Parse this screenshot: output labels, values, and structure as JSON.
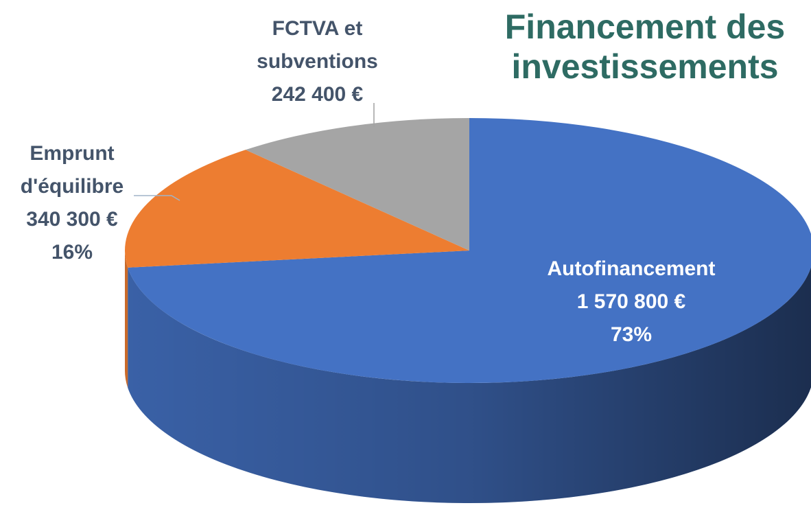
{
  "chart_data": {
    "type": "pie",
    "title": "Financement des investissements",
    "categories": [
      "Autofinancement",
      "Emprunt d'équilibre",
      "FCTVA et subventions"
    ],
    "values": [
      1570800,
      340300,
      242400
    ],
    "value_labels": [
      "1 570 800 €",
      "340 300 €",
      "242 400 €"
    ],
    "percent_labels": [
      "73%",
      "16%",
      null
    ],
    "colors": [
      "#4472c4",
      "#ed7d31",
      "#a5a5a5"
    ]
  }
}
